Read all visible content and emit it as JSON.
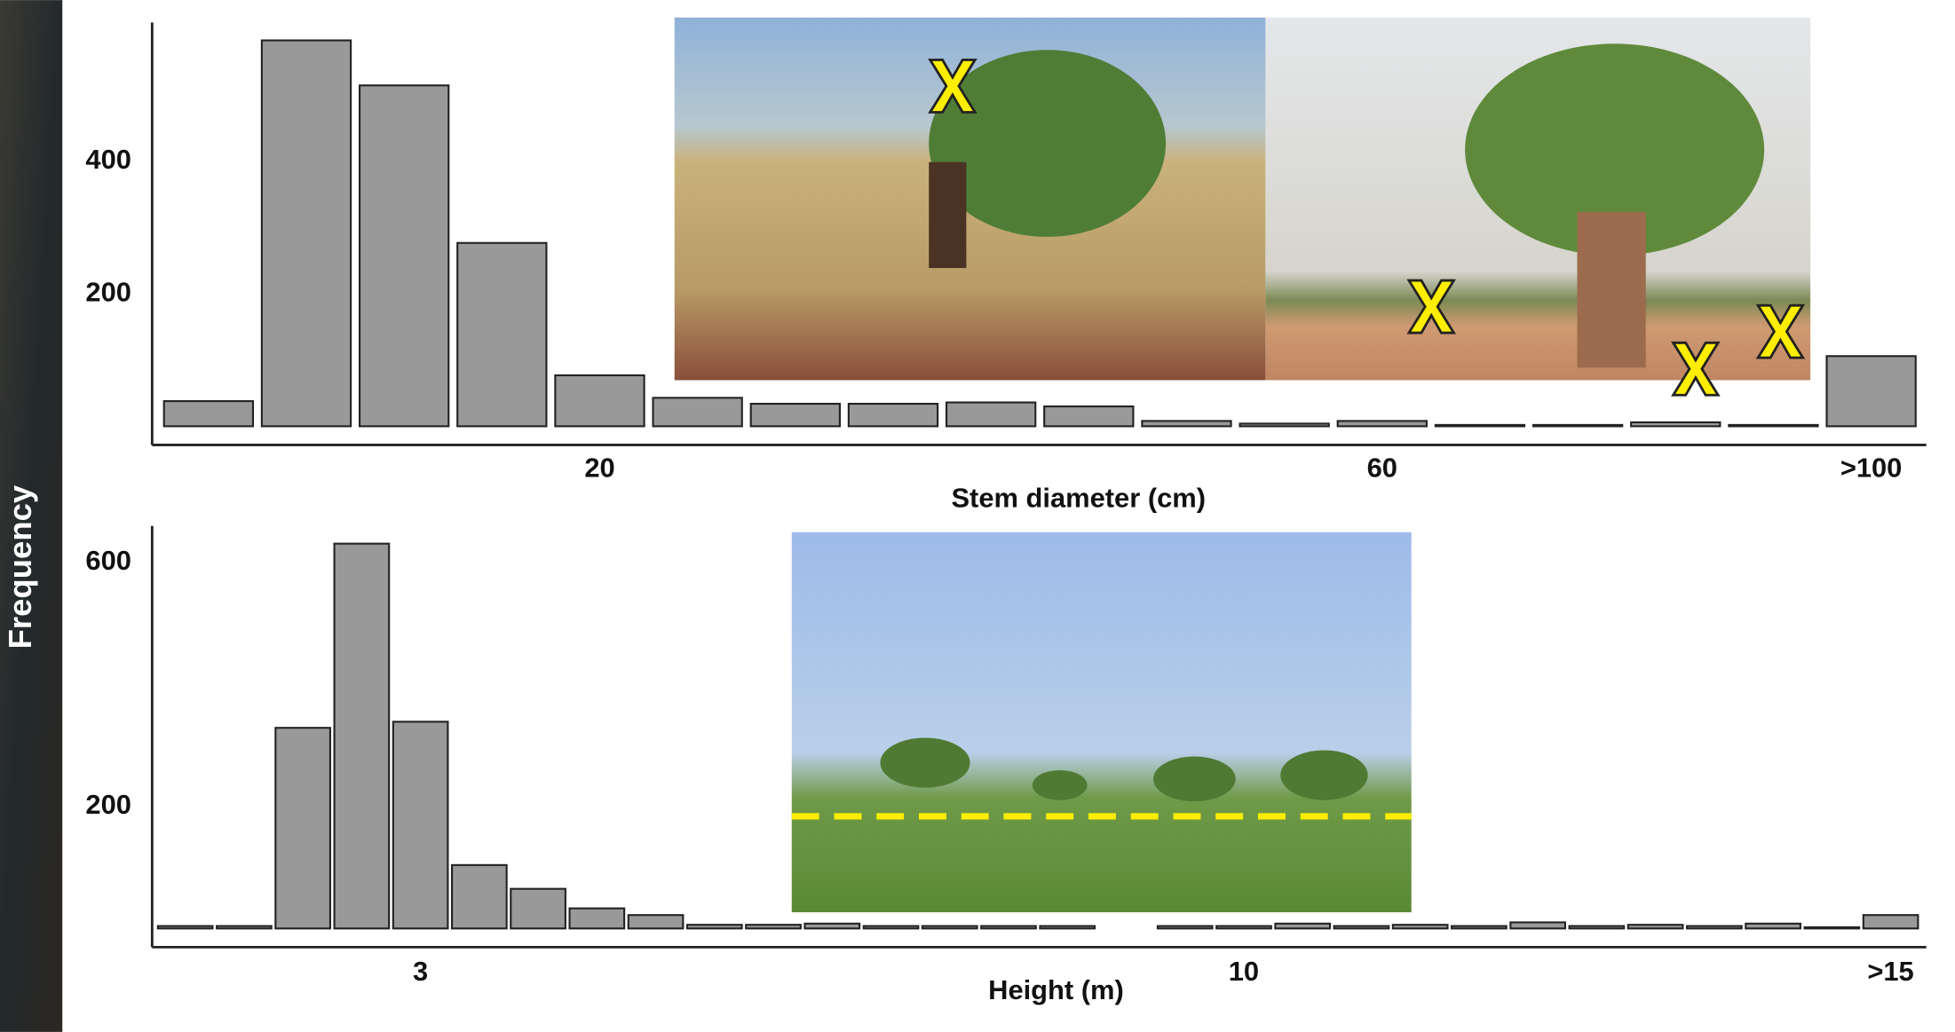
{
  "chart_data": [
    {
      "type": "bar",
      "x_label": "Stem diameter (cm)",
      "categories": [
        null,
        null,
        null,
        null,
        "20",
        null,
        null,
        null,
        null,
        null,
        null,
        null,
        "60",
        null,
        null,
        null,
        null,
        ">100"
      ],
      "values": [
        38,
        583,
        515,
        277,
        77,
        43,
        34,
        34,
        36,
        30,
        8,
        4,
        8,
        2,
        2,
        6,
        2,
        106
      ],
      "color": "#999999",
      "ylim": [
        0,
        610
      ],
      "yticks": [
        200,
        400
      ],
      "grid": false
    },
    {
      "type": "bar",
      "x_label": "Height (m)",
      "categories": [
        null,
        null,
        null,
        null,
        "3",
        null,
        null,
        null,
        null,
        null,
        null,
        null,
        null,
        null,
        null,
        null,
        null,
        null,
        "10",
        null,
        null,
        null,
        null,
        null,
        null,
        null,
        null,
        null,
        null,
        ">15"
      ],
      "values": [
        4,
        4,
        329,
        631,
        339,
        104,
        65,
        33,
        22,
        6,
        6,
        8,
        4,
        4,
        4,
        4,
        0,
        4,
        4,
        8,
        4,
        6,
        4,
        10,
        4,
        6,
        4,
        8,
        2,
        22
      ],
      "color": "#999999",
      "ylim": [
        0,
        660
      ],
      "yticks": [
        200,
        600
      ],
      "grid": false
    }
  ],
  "y_label": "Frequency"
}
